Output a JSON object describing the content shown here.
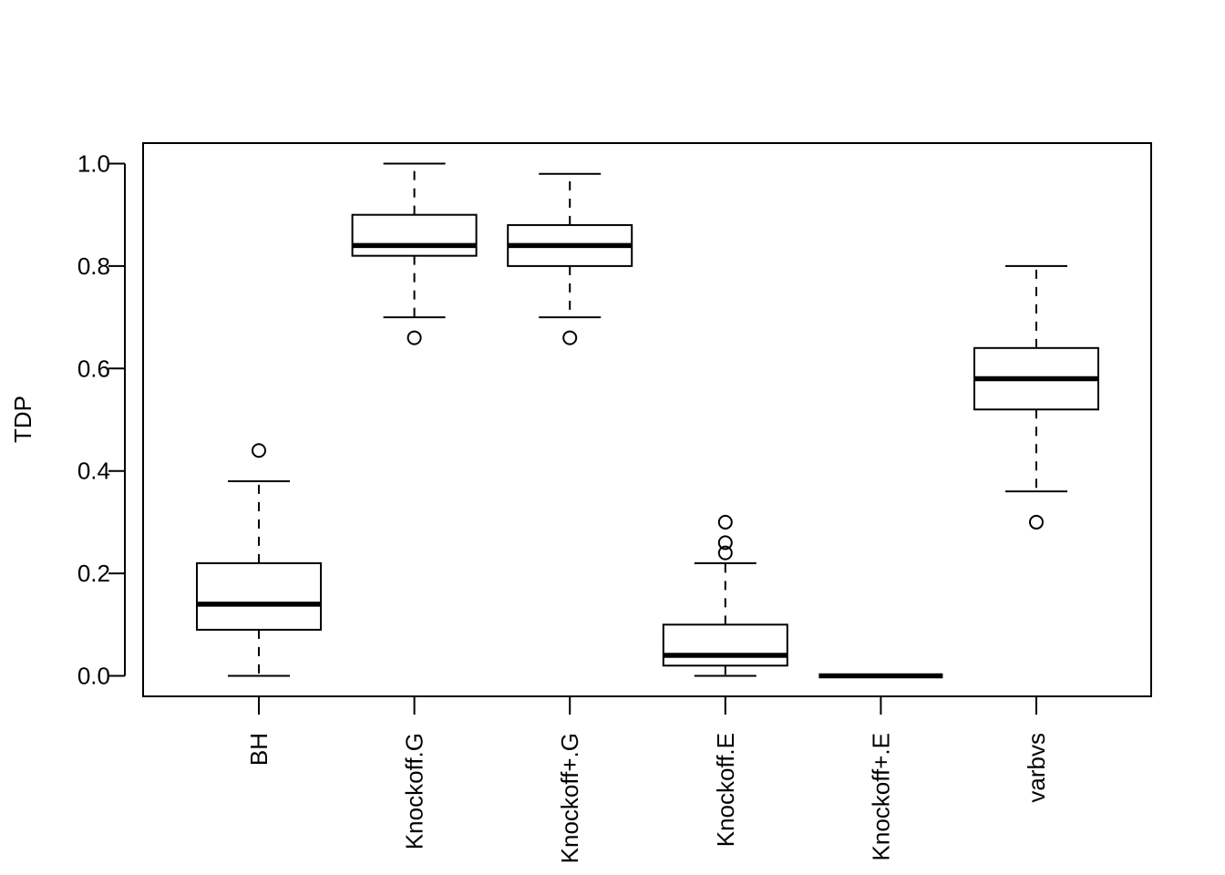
{
  "chart_data": {
    "type": "boxplot",
    "title": "",
    "xlabel": "",
    "ylabel": "TDP",
    "ylim": [
      -0.04,
      1.04
    ],
    "yticks": [
      0.0,
      0.2,
      0.4,
      0.6,
      0.8,
      1.0
    ],
    "ytick_labels": [
      "0.0",
      "0.2",
      "0.4",
      "0.6",
      "0.8",
      "1.0"
    ],
    "grid": false,
    "categories": [
      "BH",
      "Knockoff.G",
      "Knockoff+.G",
      "Knockoff.E",
      "Knockoff+.E",
      "varbvs"
    ],
    "boxes": [
      {
        "name": "BH",
        "whisker_low": 0.0,
        "q1": 0.09,
        "median": 0.14,
        "q3": 0.22,
        "whisker_high": 0.38,
        "outliers": [
          0.44
        ]
      },
      {
        "name": "Knockoff.G",
        "whisker_low": 0.7,
        "q1": 0.82,
        "median": 0.84,
        "q3": 0.9,
        "whisker_high": 1.0,
        "outliers": [
          0.66
        ]
      },
      {
        "name": "Knockoff+.G",
        "whisker_low": 0.7,
        "q1": 0.8,
        "median": 0.84,
        "q3": 0.88,
        "whisker_high": 0.98,
        "outliers": [
          0.66
        ]
      },
      {
        "name": "Knockoff.E",
        "whisker_low": 0.0,
        "q1": 0.02,
        "median": 0.04,
        "q3": 0.1,
        "whisker_high": 0.22,
        "outliers": [
          0.24,
          0.26,
          0.3
        ]
      },
      {
        "name": "Knockoff+.E",
        "whisker_low": 0.0,
        "q1": 0.0,
        "median": 0.0,
        "q3": 0.0,
        "whisker_high": 0.0,
        "outliers": []
      },
      {
        "name": "varbvs",
        "whisker_low": 0.36,
        "q1": 0.52,
        "median": 0.58,
        "q3": 0.64,
        "whisker_high": 0.8,
        "outliers": [
          0.3
        ]
      }
    ]
  }
}
